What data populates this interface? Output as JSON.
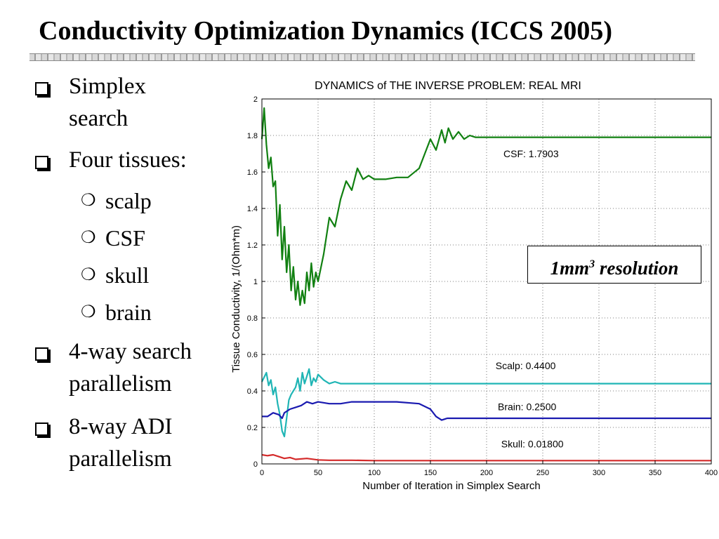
{
  "slide": {
    "title": "Conductivity Optimization Dynamics (ICCS 2005)",
    "bullets": [
      {
        "level": 1,
        "lines": [
          "Simplex",
          "search"
        ]
      },
      {
        "level": 1,
        "lines": [
          "Four tissues:"
        ]
      },
      {
        "level": 2,
        "lines": [
          "scalp"
        ]
      },
      {
        "level": 2,
        "lines": [
          "CSF"
        ]
      },
      {
        "level": 2,
        "lines": [
          "skull"
        ]
      },
      {
        "level": 2,
        "lines": [
          "brain"
        ]
      },
      {
        "level": 1,
        "lines": [
          "4-way search",
          "parallelism"
        ]
      },
      {
        "level": 1,
        "lines": [
          "8-way ADI",
          "parallelism"
        ]
      }
    ],
    "annotation": {
      "prefix": "1mm",
      "sup": "3",
      "suffix": " resolution"
    }
  },
  "chart_data": {
    "type": "line",
    "title": "DYNAMICS of THE INVERSE PROBLEM: REAL MRI",
    "xlabel": "Number of Iteration in Simplex Search",
    "ylabel": "Tissue Conductivity, 1/(Ohm*m)",
    "xlim": [
      0,
      400
    ],
    "ylim": [
      0,
      2
    ],
    "xticks": [
      0,
      50,
      100,
      150,
      200,
      250,
      300,
      350,
      400
    ],
    "yticks": [
      0,
      0.2,
      0.4,
      0.6,
      0.8,
      1,
      1.2,
      1.4,
      1.6,
      1.8,
      2
    ],
    "grid": true,
    "series": [
      {
        "name": "CSF: 1.7903",
        "color": "#118011",
        "x": [
          0,
          2,
          4,
          6,
          8,
          10,
          12,
          14,
          16,
          18,
          20,
          22,
          24,
          26,
          28,
          30,
          32,
          34,
          36,
          38,
          40,
          42,
          44,
          46,
          48,
          50,
          55,
          60,
          65,
          70,
          75,
          80,
          85,
          90,
          95,
          100,
          110,
          120,
          130,
          140,
          145,
          150,
          155,
          160,
          163,
          166,
          170,
          175,
          180,
          185,
          190,
          200,
          220,
          250,
          300,
          350,
          400
        ],
        "y": [
          1.78,
          1.95,
          1.75,
          1.62,
          1.68,
          1.52,
          1.55,
          1.25,
          1.42,
          1.12,
          1.3,
          1.05,
          1.2,
          0.95,
          1.08,
          0.9,
          1.0,
          0.87,
          0.95,
          0.88,
          1.05,
          0.95,
          1.1,
          0.97,
          1.05,
          1.0,
          1.15,
          1.35,
          1.3,
          1.45,
          1.55,
          1.5,
          1.62,
          1.56,
          1.58,
          1.56,
          1.56,
          1.57,
          1.57,
          1.62,
          1.7,
          1.78,
          1.72,
          1.83,
          1.76,
          1.84,
          1.78,
          1.82,
          1.78,
          1.8,
          1.79,
          1.79,
          1.79,
          1.79,
          1.79,
          1.79,
          1.79
        ]
      },
      {
        "name": "Scalp: 0.4400",
        "color": "#20b5b5",
        "x": [
          0,
          4,
          6,
          8,
          10,
          12,
          14,
          16,
          18,
          20,
          22,
          24,
          26,
          28,
          30,
          32,
          34,
          36,
          38,
          40,
          42,
          44,
          46,
          48,
          50,
          55,
          60,
          65,
          70,
          80,
          100,
          150,
          200,
          300,
          400
        ],
        "y": [
          0.45,
          0.5,
          0.43,
          0.46,
          0.38,
          0.42,
          0.33,
          0.27,
          0.18,
          0.15,
          0.25,
          0.35,
          0.38,
          0.4,
          0.42,
          0.47,
          0.4,
          0.5,
          0.44,
          0.48,
          0.52,
          0.43,
          0.47,
          0.45,
          0.49,
          0.46,
          0.44,
          0.45,
          0.44,
          0.44,
          0.44,
          0.44,
          0.44,
          0.44,
          0.44
        ]
      },
      {
        "name": "Brain: 0.2500",
        "color": "#1a1ab0",
        "x": [
          0,
          5,
          10,
          15,
          18,
          20,
          25,
          30,
          35,
          40,
          45,
          50,
          60,
          70,
          80,
          90,
          100,
          120,
          140,
          150,
          155,
          160,
          165,
          170,
          175,
          180,
          200,
          250,
          300,
          400
        ],
        "y": [
          0.26,
          0.26,
          0.28,
          0.27,
          0.25,
          0.28,
          0.3,
          0.31,
          0.32,
          0.34,
          0.33,
          0.34,
          0.33,
          0.33,
          0.34,
          0.34,
          0.34,
          0.34,
          0.33,
          0.3,
          0.26,
          0.24,
          0.25,
          0.25,
          0.25,
          0.25,
          0.25,
          0.25,
          0.25,
          0.25
        ]
      },
      {
        "name": "Skull: 0.01800",
        "color": "#d42a2a",
        "x": [
          0,
          5,
          10,
          15,
          20,
          25,
          30,
          40,
          50,
          60,
          80,
          100,
          150,
          200,
          300,
          400
        ],
        "y": [
          0.05,
          0.045,
          0.05,
          0.04,
          0.03,
          0.035,
          0.025,
          0.03,
          0.022,
          0.02,
          0.02,
          0.018,
          0.018,
          0.018,
          0.018,
          0.018
        ]
      }
    ],
    "labels": [
      "CSF: 1.7903",
      "Scalp: 0.4400",
      "Brain: 0.2500",
      "Skull: 0.01800"
    ]
  }
}
